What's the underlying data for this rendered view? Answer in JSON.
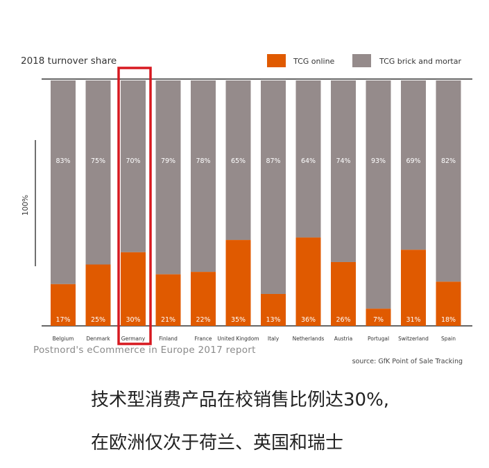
{
  "chart_data": {
    "type": "bar",
    "stacked": true,
    "title": "2018 turnover share",
    "ylabel": "100%",
    "ylim": [
      0,
      100
    ],
    "categories": [
      "Belgium",
      "Denmark",
      "Germany",
      "Finland",
      "France",
      "United Kingdom",
      "Italy",
      "Netherlands",
      "Austria",
      "Portugal",
      "Switzerland",
      "Spain"
    ],
    "series": [
      {
        "name": "TCG online",
        "color": "#e05a00",
        "values": [
          17,
          25,
          30,
          21,
          22,
          35,
          13,
          36,
          26,
          7,
          31,
          18
        ],
        "labels": [
          "17%",
          "25%",
          "30%",
          "21%",
          "22%",
          "35%",
          "13%",
          "36%",
          "26%",
          "7%",
          "31%",
          "18%"
        ]
      },
      {
        "name": "TCG brick and mortar",
        "color": "#958b8b",
        "values": [
          83,
          75,
          70,
          79,
          78,
          65,
          87,
          64,
          74,
          93,
          69,
          82
        ],
        "labels": [
          "83%",
          "75%",
          "70%",
          "79%",
          "78%",
          "65%",
          "87%",
          "64%",
          "74%",
          "93%",
          "69%",
          "82%"
        ]
      }
    ],
    "legend": "top-right",
    "highlight_category": "Germany",
    "highlight_color": "#d71920"
  },
  "caption": "Postnord's eCommerce in Europe 2017 report",
  "source": "source: GfK Point of Sale Tracking",
  "headline": {
    "line1": "技术型消费产品在校销售比例达30%,",
    "line2": "在欧洲仅次于荷兰、英国和瑞士"
  }
}
